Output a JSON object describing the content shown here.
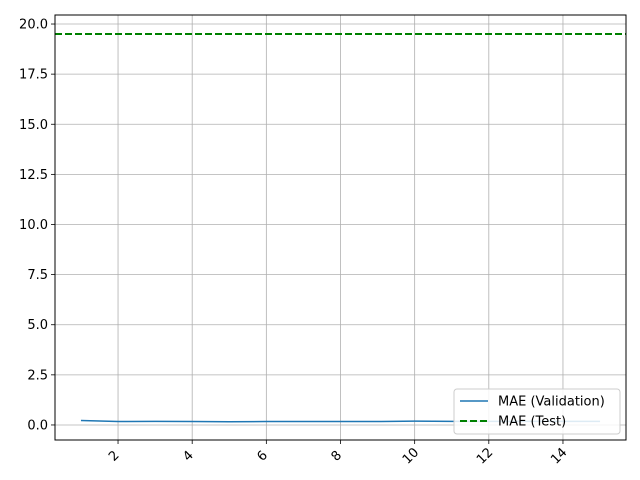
{
  "chart_data": {
    "type": "line",
    "title": "",
    "xlabel": "",
    "ylabel": "",
    "xlim": [
      0.3,
      15.7
    ],
    "ylim": [
      -0.75,
      20.45
    ],
    "grid": true,
    "legend_position": "lower-right",
    "x_ticks": [
      2,
      4,
      6,
      8,
      10,
      12,
      14
    ],
    "x_tick_labels": [
      "2",
      "4",
      "6",
      "8",
      "10",
      "12",
      "14"
    ],
    "y_ticks": [
      0.0,
      2.5,
      5.0,
      7.5,
      10.0,
      12.5,
      15.0,
      17.5,
      20.0
    ],
    "y_tick_labels": [
      "0.0",
      "2.5",
      "5.0",
      "7.5",
      "10.0",
      "12.5",
      "15.0",
      "17.5",
      "20.0"
    ],
    "series": [
      {
        "name": "MAE (Validation)",
        "style": "solid",
        "color": "#1f77b4",
        "x": [
          1,
          2,
          3,
          4,
          5,
          6,
          7,
          8,
          9,
          10,
          11,
          12,
          13,
          14,
          15
        ],
        "y": [
          0.22,
          0.17,
          0.18,
          0.17,
          0.16,
          0.17,
          0.17,
          0.17,
          0.17,
          0.19,
          0.18,
          0.18,
          0.18,
          0.18,
          0.18
        ]
      },
      {
        "name": "MAE (Test)",
        "style": "dashed",
        "color": "#008000",
        "y_constant": 19.5
      }
    ]
  }
}
